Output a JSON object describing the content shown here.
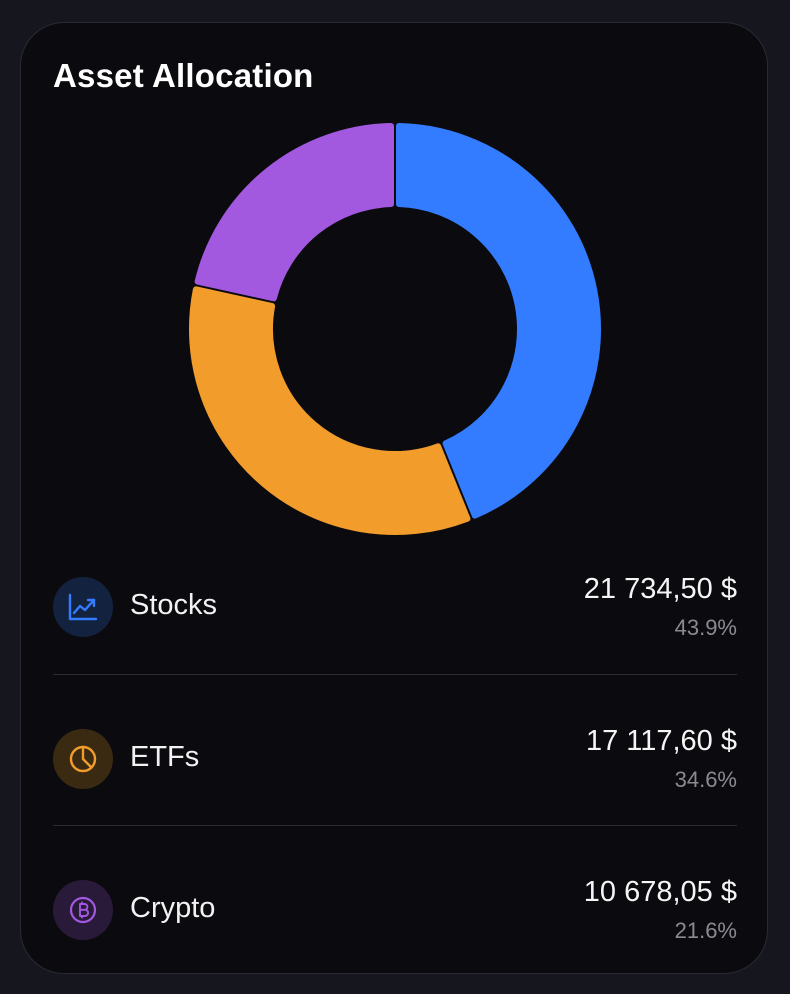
{
  "card": {
    "title": "Asset Allocation"
  },
  "chart_data": {
    "type": "pie",
    "style": "donut",
    "categories": [
      "Stocks",
      "ETFs",
      "Crypto"
    ],
    "values": [
      21734.5,
      17117.6,
      10678.05
    ],
    "percentages": [
      43.9,
      34.6,
      21.6
    ],
    "colors": [
      "#337cff",
      "#f29c2b",
      "#a259e0"
    ]
  },
  "rows": [
    {
      "label": "Stocks",
      "amount": "21 734,50 $",
      "percent": "43.9%",
      "icon": "trend-chart-icon",
      "color": "#337cff",
      "badge_bg": "#13233f"
    },
    {
      "label": "ETFs",
      "amount": "17 117,60 $",
      "percent": "34.6%",
      "icon": "pie-chart-icon",
      "color": "#f29c2b",
      "badge_bg": "#3a2a12"
    },
    {
      "label": "Crypto",
      "amount": "10 678,05 $",
      "percent": "21.6%",
      "icon": "bitcoin-icon",
      "color": "#a259e0",
      "badge_bg": "#2a1a3a"
    }
  ]
}
